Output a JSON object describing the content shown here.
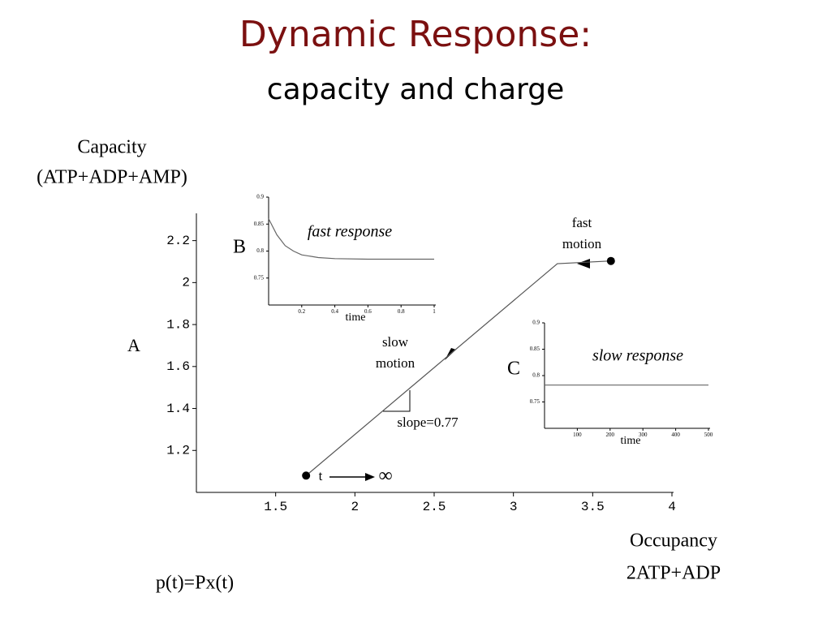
{
  "title": "Dynamic Response:",
  "subtitle": "capacity and charge",
  "formula": "p(t)=Px(t)",
  "chart_data": [
    {
      "type": "line",
      "ylabel": [
        "Capacity",
        "(ATP+ADP+AMP)"
      ],
      "xlabel": [
        "Occupancy",
        "2ATP+ADP"
      ],
      "annotations": [
        "A",
        "fast",
        "motion",
        "slow",
        "motion",
        "slope=0.77",
        "t",
        "∞"
      ],
      "x": [
        3.615,
        3.277,
        1.692
      ],
      "series": [
        {
          "color": "#555555",
          "values": [
            2.103,
            2.09,
            1.08
          ]
        }
      ],
      "xlim": [
        1.0,
        4.0
      ],
      "xticks": [
        1.5,
        2,
        2.5,
        3,
        3.5,
        4
      ],
      "ylim": [
        1.0,
        2.33
      ],
      "yticks": [
        1.2,
        1.4,
        1.6,
        1.8,
        2,
        2.2
      ]
    },
    {
      "type": "line",
      "label": "B",
      "title": "fast response",
      "xlabel": "time",
      "x": [
        0,
        0.05,
        0.1,
        0.15,
        0.2,
        0.3,
        0.4,
        0.6,
        0.8,
        1
      ],
      "series": [
        {
          "color": "#666666",
          "values": [
            0.86,
            0.83,
            0.81,
            0.8,
            0.793,
            0.788,
            0.786,
            0.785,
            0.785,
            0.785
          ]
        }
      ],
      "xlim": [
        0,
        1
      ],
      "xticks": [
        0.2,
        0.4,
        0.6,
        0.8,
        1
      ],
      "ylim": [
        0.7,
        0.9
      ],
      "yticks": [
        0.75,
        0.8,
        0.85,
        0.9
      ]
    },
    {
      "type": "line",
      "label": "C",
      "title": "slow response",
      "xlabel": "time",
      "x": [
        0,
        500
      ],
      "series": [
        {
          "color": "#666666",
          "values": [
            0.782,
            0.782
          ]
        }
      ],
      "xlim": [
        0,
        500
      ],
      "xticks": [
        100,
        200,
        300,
        400,
        500
      ],
      "ylim": [
        0.7,
        0.9
      ],
      "yticks": [
        0.75,
        0.8,
        0.85,
        0.9
      ]
    }
  ]
}
